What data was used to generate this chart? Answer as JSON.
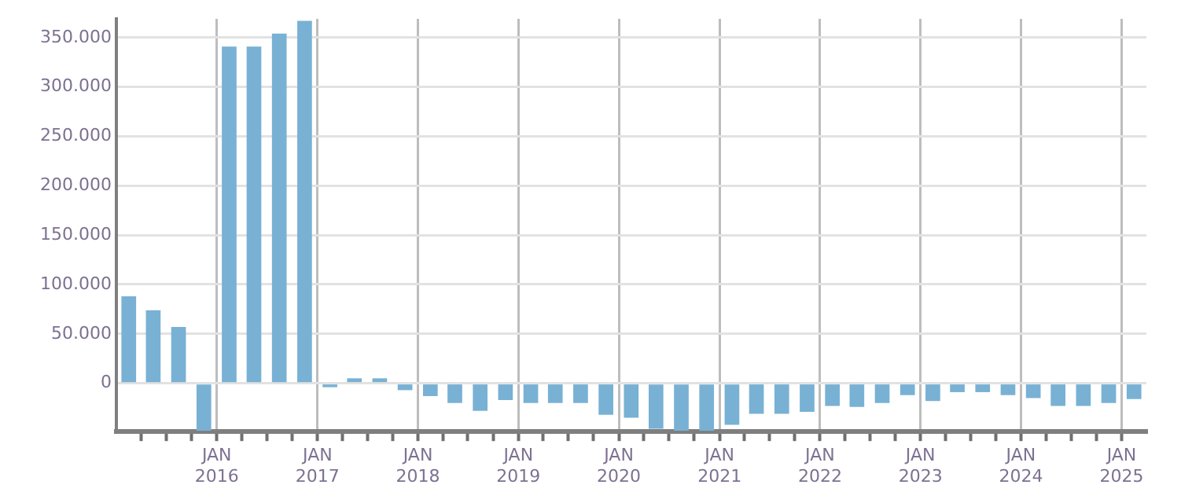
{
  "chart_data": {
    "type": "bar",
    "x": [
      "2015-02-15",
      "2015-05-15",
      "2015-08-15",
      "2015-11-15",
      "2016-02-15",
      "2016-05-15",
      "2016-08-15",
      "2016-11-15",
      "2017-02-15",
      "2017-05-15",
      "2017-08-15",
      "2017-11-15",
      "2018-02-15",
      "2018-05-15",
      "2018-08-15",
      "2018-11-15",
      "2019-02-15",
      "2019-05-15",
      "2019-08-15",
      "2019-11-15",
      "2020-02-15",
      "2020-05-15",
      "2020-08-15",
      "2020-11-15",
      "2021-02-15",
      "2021-05-15",
      "2021-08-15",
      "2021-11-15",
      "2022-02-15",
      "2022-05-15",
      "2022-08-15",
      "2022-11-15",
      "2023-02-15",
      "2023-05-15",
      "2023-08-15",
      "2023-11-15",
      "2024-02-15",
      "2024-05-15",
      "2024-08-15",
      "2024-11-15",
      "2025-02-15"
    ],
    "values": [
      88000,
      74000,
      57000,
      -48000,
      341000,
      341000,
      354000,
      367000,
      -4000,
      5000,
      5000,
      -7000,
      -13000,
      -20000,
      -28000,
      -17000,
      -20000,
      -20000,
      -20000,
      -32000,
      -35000,
      -46000,
      -48000,
      -48000,
      -42000,
      -31000,
      -31000,
      -29000,
      -23000,
      -24000,
      -20000,
      -12000,
      -18000,
      -9000,
      -9000,
      -12000,
      -15000,
      -23000,
      -23000,
      -20000,
      -16000
    ],
    "color": "#78b1d4",
    "xlim": [
      "2015-01-01",
      "2025-04-01"
    ],
    "xticks": [
      {
        "value": "2015-04-01",
        "label": null
      },
      {
        "value": "2015-07-01",
        "label": null
      },
      {
        "value": "2015-10-01",
        "label": null
      },
      {
        "value": "2016-01-01",
        "label": "JAN 2016"
      },
      {
        "value": "2016-04-01",
        "label": null
      },
      {
        "value": "2016-07-01",
        "label": null
      },
      {
        "value": "2016-10-01",
        "label": null
      },
      {
        "value": "2017-01-01",
        "label": "JAN 2017"
      },
      {
        "value": "2017-04-01",
        "label": null
      },
      {
        "value": "2017-07-01",
        "label": null
      },
      {
        "value": "2017-10-01",
        "label": null
      },
      {
        "value": "2018-01-01",
        "label": "JAN 2018"
      },
      {
        "value": "2018-04-01",
        "label": null
      },
      {
        "value": "2018-07-01",
        "label": null
      },
      {
        "value": "2018-10-01",
        "label": null
      },
      {
        "value": "2019-01-01",
        "label": "JAN 2019"
      },
      {
        "value": "2019-04-01",
        "label": null
      },
      {
        "value": "2019-07-01",
        "label": null
      },
      {
        "value": "2019-10-01",
        "label": null
      },
      {
        "value": "2020-01-01",
        "label": "JAN 2020"
      },
      {
        "value": "2020-04-01",
        "label": null
      },
      {
        "value": "2020-07-01",
        "label": null
      },
      {
        "value": "2020-10-01",
        "label": null
      },
      {
        "value": "2021-01-01",
        "label": "JAN 2021"
      },
      {
        "value": "2021-04-01",
        "label": null
      },
      {
        "value": "2021-07-01",
        "label": null
      },
      {
        "value": "2021-10-01",
        "label": null
      },
      {
        "value": "2022-01-01",
        "label": "JAN 2022"
      },
      {
        "value": "2022-04-01",
        "label": null
      },
      {
        "value": "2022-07-01",
        "label": null
      },
      {
        "value": "2022-10-01",
        "label": null
      },
      {
        "value": "2023-01-01",
        "label": "JAN 2023"
      },
      {
        "value": "2023-04-01",
        "label": null
      },
      {
        "value": "2023-07-01",
        "label": null
      },
      {
        "value": "2023-10-01",
        "label": null
      },
      {
        "value": "2024-01-01",
        "label": "JAN 2024"
      },
      {
        "value": "2024-04-01",
        "label": null
      },
      {
        "value": "2024-07-01",
        "label": null
      },
      {
        "value": "2024-10-01",
        "label": null
      },
      {
        "value": "2025-01-01",
        "label": "JAN 2025"
      }
    ],
    "ylim": [
      -49000,
      369000
    ],
    "yticks": [
      0,
      {
        "value": 50000,
        "label": "50.000"
      },
      {
        "value": 100000,
        "label": "100.000"
      },
      {
        "value": 150000,
        "label": "150.000"
      },
      {
        "value": 200000,
        "label": "200.000"
      },
      {
        "value": 250000,
        "label": "250.000"
      },
      {
        "value": 300000,
        "label": "300.000"
      },
      {
        "value": 350000,
        "label": "350.000"
      }
    ],
    "grid": true,
    "legend": false
  }
}
